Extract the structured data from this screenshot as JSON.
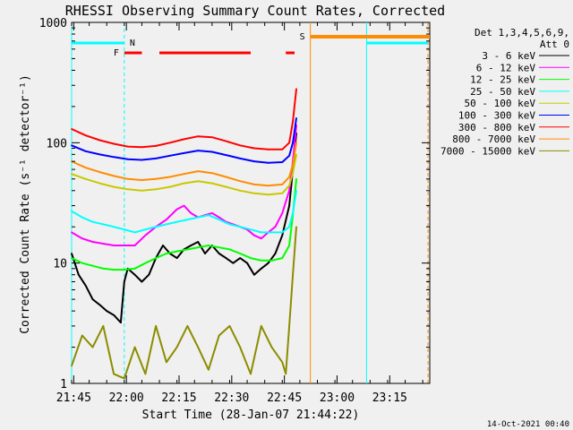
{
  "chart_data": {
    "type": "line",
    "title": "RHESSI Observing Summary Count Rates, Corrected",
    "xlabel": "Start Time (28-Jan-07 21:44:22)",
    "ylabel": "Corrected Count Rate (s⁻¹ detector⁻¹)",
    "ylog": true,
    "ylim": [
      1,
      1000
    ],
    "xlim_minutes": [
      0,
      102
    ],
    "x_tick_labels": [
      "21:45",
      "22:00",
      "22:15",
      "22:30",
      "22:45",
      "23:00",
      "23:15"
    ],
    "x_tick_minutes": [
      0.6,
      15.6,
      30.6,
      45.6,
      60.6,
      75.6,
      90.6
    ],
    "y_tick_labels": [
      "1",
      "10",
      "100",
      "1000"
    ],
    "y_tick_values": [
      1,
      10,
      100,
      1000
    ],
    "legend_header": [
      "Det 1,3,4,5,6,9,",
      "Att 0"
    ],
    "legend_position": "right",
    "footer_date": "14-Oct-2021 00:40",
    "flags": {
      "N_label": "N",
      "F_label": "F",
      "S_label": "S",
      "night_intervals": [
        [
          0,
          15
        ],
        [
          84,
          101.5
        ]
      ],
      "flare_intervals": [
        [
          15,
          20
        ],
        [
          25,
          51
        ],
        [
          61,
          63.5
        ]
      ],
      "saa_interval": [
        68,
        102
      ],
      "night_color": "#00ffff",
      "flare_color": "#ff0000",
      "saa_color": "#ff8c00"
    },
    "vlines": [
      {
        "t": 0,
        "color": "#00ffff",
        "style": "solid"
      },
      {
        "t": 15,
        "color": "#00ffff",
        "style": "dashed"
      },
      {
        "t": 68,
        "color": "#ff8c00",
        "style": "solid"
      },
      {
        "t": 84,
        "color": "#00ffff",
        "style": "solid"
      },
      {
        "t": 101.5,
        "color": "#ff8c00",
        "style": "dashed"
      }
    ],
    "series": [
      {
        "name": "3 - 6 keV",
        "color": "#000000",
        "points": [
          [
            0,
            12
          ],
          [
            2,
            8
          ],
          [
            4,
            6.5
          ],
          [
            6,
            5
          ],
          [
            8,
            4.5
          ],
          [
            10,
            4
          ],
          [
            12,
            3.7
          ],
          [
            14,
            3.2
          ],
          [
            15,
            7
          ],
          [
            16,
            9
          ],
          [
            18,
            8
          ],
          [
            20,
            7
          ],
          [
            22,
            8
          ],
          [
            24,
            11
          ],
          [
            26,
            14
          ],
          [
            28,
            12
          ],
          [
            30,
            11
          ],
          [
            32,
            13
          ],
          [
            34,
            14
          ],
          [
            36,
            15
          ],
          [
            38,
            12
          ],
          [
            40,
            14
          ],
          [
            42,
            12
          ],
          [
            44,
            11
          ],
          [
            46,
            10
          ],
          [
            48,
            11
          ],
          [
            50,
            10
          ],
          [
            52,
            8
          ],
          [
            54,
            9
          ],
          [
            56,
            10
          ],
          [
            58,
            12
          ],
          [
            60,
            17
          ],
          [
            62,
            30
          ],
          [
            63,
            60
          ],
          [
            64,
            120
          ]
        ]
      },
      {
        "name": "6 - 12 keV",
        "color": "#ff00ff",
        "points": [
          [
            0,
            18
          ],
          [
            3,
            16
          ],
          [
            6,
            15
          ],
          [
            9,
            14.5
          ],
          [
            12,
            14
          ],
          [
            15,
            14
          ],
          [
            18,
            14
          ],
          [
            21,
            17
          ],
          [
            24,
            20
          ],
          [
            27,
            23
          ],
          [
            30,
            28
          ],
          [
            32,
            30
          ],
          [
            34,
            26
          ],
          [
            36,
            24
          ],
          [
            38,
            25
          ],
          [
            40,
            26
          ],
          [
            42,
            24
          ],
          [
            44,
            22
          ],
          [
            46,
            21
          ],
          [
            48,
            20
          ],
          [
            50,
            19
          ],
          [
            52,
            17
          ],
          [
            54,
            16
          ],
          [
            56,
            18
          ],
          [
            58,
            20
          ],
          [
            60,
            26
          ],
          [
            62,
            40
          ],
          [
            63,
            70
          ],
          [
            64,
            140
          ]
        ]
      },
      {
        "name": "12 - 25 keV",
        "color": "#00ff00",
        "points": [
          [
            0,
            11
          ],
          [
            3,
            10
          ],
          [
            6,
            9.5
          ],
          [
            9,
            9
          ],
          [
            12,
            8.8
          ],
          [
            15,
            8.8
          ],
          [
            18,
            9
          ],
          [
            21,
            10
          ],
          [
            24,
            11
          ],
          [
            27,
            12
          ],
          [
            30,
            12.5
          ],
          [
            33,
            13
          ],
          [
            36,
            13.5
          ],
          [
            39,
            14
          ],
          [
            42,
            13.5
          ],
          [
            45,
            13
          ],
          [
            48,
            12
          ],
          [
            51,
            11
          ],
          [
            54,
            10.5
          ],
          [
            57,
            10.5
          ],
          [
            60,
            11
          ],
          [
            62,
            14
          ],
          [
            63,
            25
          ],
          [
            64,
            50
          ]
        ]
      },
      {
        "name": "25 - 50 keV",
        "color": "#00ffff",
        "points": [
          [
            0,
            27
          ],
          [
            3,
            24
          ],
          [
            6,
            22
          ],
          [
            9,
            21
          ],
          [
            12,
            20
          ],
          [
            15,
            19
          ],
          [
            18,
            18
          ],
          [
            21,
            19
          ],
          [
            24,
            20
          ],
          [
            27,
            21
          ],
          [
            30,
            22
          ],
          [
            33,
            23
          ],
          [
            36,
            24
          ],
          [
            39,
            25
          ],
          [
            42,
            23
          ],
          [
            45,
            21
          ],
          [
            48,
            20
          ],
          [
            51,
            19
          ],
          [
            54,
            18
          ],
          [
            57,
            18
          ],
          [
            60,
            18
          ],
          [
            62,
            20
          ],
          [
            63,
            26
          ],
          [
            64,
            40
          ]
        ]
      },
      {
        "name": "50 - 100 keV",
        "color": "#c8c800",
        "points": [
          [
            0,
            55
          ],
          [
            4,
            50
          ],
          [
            8,
            46
          ],
          [
            12,
            43
          ],
          [
            16,
            41
          ],
          [
            20,
            40
          ],
          [
            24,
            41
          ],
          [
            28,
            43
          ],
          [
            32,
            46
          ],
          [
            36,
            48
          ],
          [
            40,
            46
          ],
          [
            44,
            43
          ],
          [
            48,
            40
          ],
          [
            52,
            38
          ],
          [
            56,
            37
          ],
          [
            60,
            38
          ],
          [
            62,
            44
          ],
          [
            63,
            56
          ],
          [
            64,
            80
          ]
        ]
      },
      {
        "name": "100 - 300 keV",
        "color": "#0000ff",
        "points": [
          [
            0,
            95
          ],
          [
            4,
            85
          ],
          [
            8,
            80
          ],
          [
            12,
            76
          ],
          [
            16,
            73
          ],
          [
            20,
            72
          ],
          [
            24,
            74
          ],
          [
            28,
            78
          ],
          [
            32,
            82
          ],
          [
            36,
            86
          ],
          [
            40,
            84
          ],
          [
            44,
            79
          ],
          [
            48,
            74
          ],
          [
            52,
            70
          ],
          [
            56,
            68
          ],
          [
            60,
            69
          ],
          [
            62,
            78
          ],
          [
            63,
            100
          ],
          [
            64,
            160
          ]
        ]
      },
      {
        "name": "300 - 800 keV",
        "color": "#ff0000",
        "points": [
          [
            0,
            130
          ],
          [
            4,
            115
          ],
          [
            8,
            105
          ],
          [
            12,
            98
          ],
          [
            16,
            93
          ],
          [
            20,
            92
          ],
          [
            24,
            94
          ],
          [
            28,
            100
          ],
          [
            32,
            107
          ],
          [
            36,
            113
          ],
          [
            40,
            111
          ],
          [
            44,
            103
          ],
          [
            48,
            95
          ],
          [
            52,
            90
          ],
          [
            56,
            88
          ],
          [
            60,
            88
          ],
          [
            62,
            100
          ],
          [
            63,
            150
          ],
          [
            64,
            280
          ]
        ]
      },
      {
        "name": "800 - 7000 keV",
        "color": "#ff8c00",
        "points": [
          [
            0,
            70
          ],
          [
            4,
            62
          ],
          [
            8,
            57
          ],
          [
            12,
            53
          ],
          [
            16,
            50
          ],
          [
            20,
            49
          ],
          [
            24,
            50
          ],
          [
            28,
            52
          ],
          [
            32,
            55
          ],
          [
            36,
            58
          ],
          [
            40,
            56
          ],
          [
            44,
            52
          ],
          [
            48,
            48
          ],
          [
            52,
            45
          ],
          [
            56,
            44
          ],
          [
            60,
            45
          ],
          [
            62,
            52
          ],
          [
            63,
            66
          ],
          [
            64,
            100
          ]
        ]
      },
      {
        "name": "7000 - 15000 keV",
        "color": "#8c8c00",
        "points": [
          [
            0,
            1.4
          ],
          [
            3,
            2.5
          ],
          [
            6,
            2
          ],
          [
            9,
            3
          ],
          [
            12,
            1.2
          ],
          [
            15,
            1.1
          ],
          [
            18,
            2
          ],
          [
            21,
            1.2
          ],
          [
            24,
            3
          ],
          [
            27,
            1.5
          ],
          [
            30,
            2
          ],
          [
            33,
            3
          ],
          [
            36,
            2
          ],
          [
            39,
            1.3
          ],
          [
            42,
            2.5
          ],
          [
            45,
            3
          ],
          [
            48,
            2
          ],
          [
            51,
            1.2
          ],
          [
            54,
            3
          ],
          [
            57,
            2
          ],
          [
            60,
            1.5
          ],
          [
            61,
            1.2
          ],
          [
            62,
            3
          ],
          [
            63,
            8
          ],
          [
            64,
            20
          ]
        ]
      }
    ]
  }
}
